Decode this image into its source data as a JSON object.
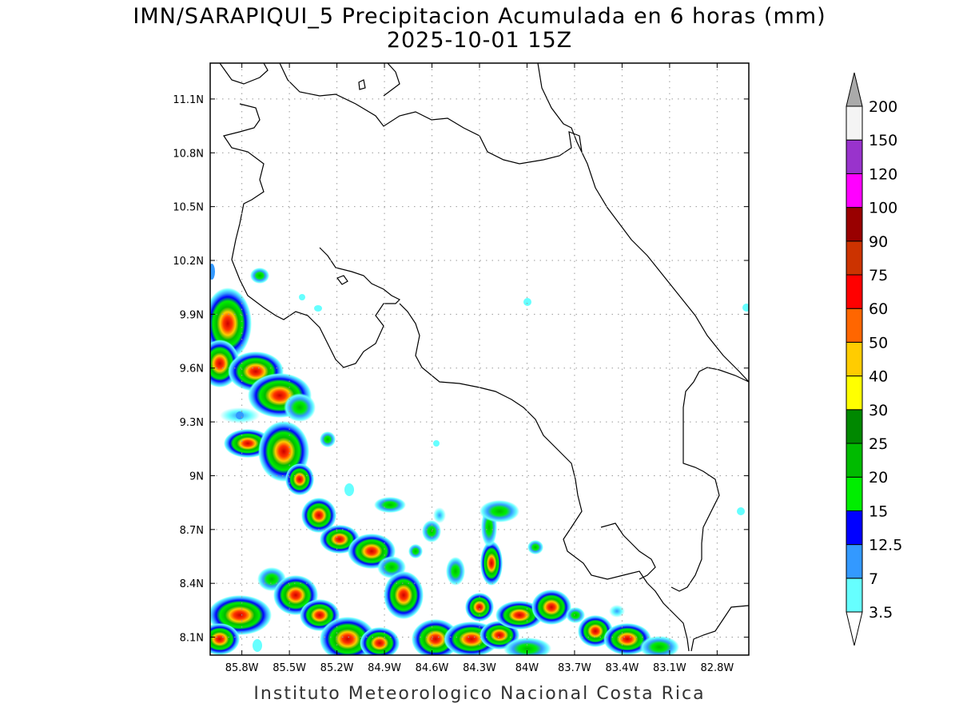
{
  "header": {
    "title_line1": "IMN/SARAPIQUI_5 Precipitacion Acumulada en 6 horas (mm)",
    "title_line2": "2025-10-01 15Z"
  },
  "footer": {
    "credit": "Instituto Meteorologico Nacional Costa Rica"
  },
  "map": {
    "lon_range": [
      -86.0,
      -82.6
    ],
    "lat_range": [
      8.0,
      11.3
    ],
    "lon_ticks": [
      {
        "value": -85.8,
        "label": "85.8W"
      },
      {
        "value": -85.5,
        "label": "85.5W"
      },
      {
        "value": -85.2,
        "label": "85.2W"
      },
      {
        "value": -84.9,
        "label": "84.9W"
      },
      {
        "value": -84.6,
        "label": "84.6W"
      },
      {
        "value": -84.3,
        "label": "84.3W"
      },
      {
        "value": -84.0,
        "label": "84W"
      },
      {
        "value": -83.7,
        "label": "83.7W"
      },
      {
        "value": -83.4,
        "label": "83.4W"
      },
      {
        "value": -83.1,
        "label": "83.1W"
      },
      {
        "value": -82.8,
        "label": "82.8W"
      }
    ],
    "lat_ticks": [
      {
        "value": 8.1,
        "label": "8.1N"
      },
      {
        "value": 8.4,
        "label": "8.4N"
      },
      {
        "value": 8.7,
        "label": "8.7N"
      },
      {
        "value": 9.0,
        "label": "9N"
      },
      {
        "value": 9.3,
        "label": "9.3N"
      },
      {
        "value": 9.6,
        "label": "9.6N"
      },
      {
        "value": 9.9,
        "label": "9.9N"
      },
      {
        "value": 10.2,
        "label": "10.2N"
      },
      {
        "value": 10.5,
        "label": "10.5N"
      },
      {
        "value": 10.8,
        "label": "10.8N"
      },
      {
        "value": 11.1,
        "label": "11.1N"
      }
    ],
    "grid": true
  },
  "colorbar": {
    "levels": [
      {
        "label": "3.5",
        "color": "#66ffff"
      },
      {
        "label": "7",
        "color": "#3399ff"
      },
      {
        "label": "12.5",
        "color": "#0000ff"
      },
      {
        "label": "15",
        "color": "#00ee00"
      },
      {
        "label": "20",
        "color": "#00bb00"
      },
      {
        "label": "25",
        "color": "#008800"
      },
      {
        "label": "30",
        "color": "#ffff00"
      },
      {
        "label": "40",
        "color": "#ffcc00"
      },
      {
        "label": "50",
        "color": "#ff6600"
      },
      {
        "label": "60",
        "color": "#ff0000"
      },
      {
        "label": "75",
        "color": "#cc3300"
      },
      {
        "label": "90",
        "color": "#990000"
      },
      {
        "label": "100",
        "color": "#ff00ff"
      },
      {
        "label": "120",
        "color": "#9933cc"
      },
      {
        "label": "150",
        "color": "#f4f4f4"
      },
      {
        "label": "200",
        "color": "#aaaaaa"
      }
    ],
    "low_end_color": "#ffffff",
    "high_end_color": "#aaaaaa"
  }
}
